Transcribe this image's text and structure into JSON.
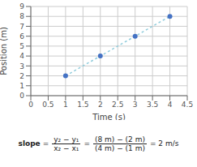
{
  "chart_data": {
    "type": "line",
    "x": [
      1,
      2,
      3,
      4
    ],
    "values": [
      2,
      4,
      6,
      8
    ],
    "xlabel": "Time (s)",
    "ylabel": "Position (m)",
    "xlim": [
      0,
      4.5
    ],
    "ylim": [
      0,
      9
    ],
    "xticks": [
      0,
      0.5,
      1.0,
      1.5,
      2.0,
      2.5,
      3.0,
      3.5,
      4.0,
      4.5
    ],
    "yticks": [
      0,
      1,
      2,
      3,
      4,
      5,
      6,
      7,
      8,
      9
    ],
    "color": "#92CDDC",
    "colors": [
      "#4472C4",
      "#4472C4",
      "#4472C4",
      "#4472C4"
    ],
    "line_style": "dotted",
    "marker": "circle",
    "grid": true,
    "annotations": [
      "slope",
      "=",
      "y₂ − y₁",
      "x₂ − x₁",
      "=",
      "(8 m) − (2 m)",
      "(4 m) − (1 m)",
      "= 2 m/s"
    ]
  }
}
